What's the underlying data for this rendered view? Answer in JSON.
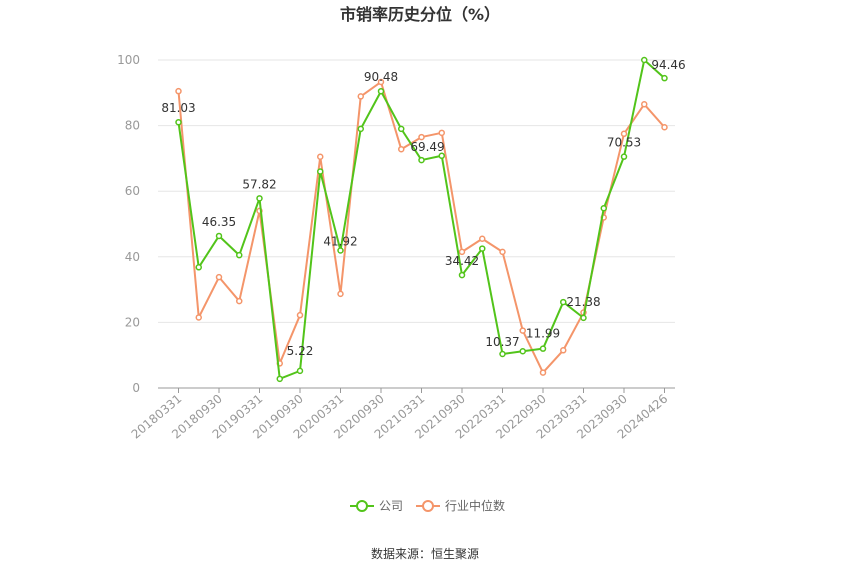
{
  "chart_data": {
    "type": "line",
    "title": "市销率历史分位（%）",
    "x_tick_labels": [
      "20180331",
      "20180930",
      "20190331",
      "20190930",
      "20200331",
      "20200930",
      "20210331",
      "20210930",
      "20220331",
      "20220930",
      "20230331",
      "20230930",
      "20240426"
    ],
    "y_ticks": [
      0,
      20,
      40,
      60,
      80,
      100
    ],
    "ylim": [
      0,
      100
    ],
    "grid": true,
    "legend_position": "bottom-center",
    "series": [
      {
        "name": "公司",
        "color": "#52c41a",
        "values": [
          81.03,
          36.8,
          46.35,
          40.5,
          57.82,
          2.8,
          5.22,
          66.0,
          41.92,
          79.0,
          90.48,
          79.0,
          69.49,
          70.8,
          34.42,
          42.5,
          10.37,
          11.2,
          11.99,
          26.2,
          21.38,
          54.8,
          70.53,
          100.0,
          94.46
        ]
      },
      {
        "name": "行业中位数",
        "color": "#f4956a",
        "values": [
          90.5,
          21.5,
          33.8,
          26.5,
          54.0,
          7.5,
          22.2,
          70.5,
          28.7,
          88.9,
          93.3,
          72.8,
          76.5,
          77.8,
          41.5,
          45.5,
          41.5,
          17.5,
          4.7,
          11.5,
          23.0,
          52.0,
          77.5,
          86.5,
          79.5
        ]
      }
    ],
    "data_labels": [
      {
        "index": 0,
        "text": "81.03"
      },
      {
        "index": 2,
        "text": "46.35"
      },
      {
        "index": 4,
        "text": "57.82"
      },
      {
        "index": 6,
        "text": "5.22"
      },
      {
        "index": 8,
        "text": "41.92"
      },
      {
        "index": 10,
        "text": "90.48"
      },
      {
        "index": 12,
        "text": "69.49"
      },
      {
        "index": 14,
        "text": "34.42"
      },
      {
        "index": 16,
        "text": "10.37"
      },
      {
        "index": 18,
        "text": "11.99"
      },
      {
        "index": 20,
        "text": "21.38"
      },
      {
        "index": 22,
        "text": "70.53"
      },
      {
        "index": 24,
        "text": "94.46"
      }
    ]
  },
  "source_label": "数据来源：恒生聚源"
}
